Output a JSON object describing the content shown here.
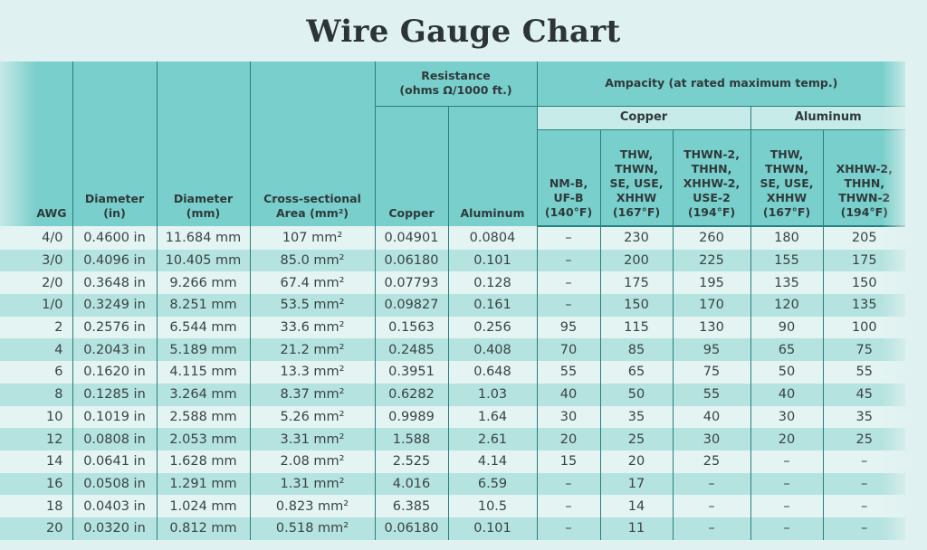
{
  "title": "Wire Gauge Chart",
  "headers": {
    "awg": "AWG",
    "diameter_in": [
      "Diameter",
      "(in)"
    ],
    "diameter_mm": [
      "Diameter",
      "(mm)"
    ],
    "area": [
      "Cross-sectional",
      "Area (mm²)"
    ],
    "resistance_group": [
      "Resistance",
      "(ohms Ω/1000 ft.)"
    ],
    "resistance_copper": "Copper",
    "resistance_aluminum": "Aluminum",
    "ampacity_group": "Ampacity (at rated maximum temp.)",
    "ampacity_copper_group": "Copper",
    "ampacity_aluminum_group": "Aluminum",
    "cu_140": [
      "NM-B,",
      "UF-B",
      "(140°F)"
    ],
    "cu_167": [
      "THW,",
      "THWN,",
      "SE, USE,",
      "XHHW",
      "(167°F)"
    ],
    "cu_194": [
      "THWN-2,",
      "THHN,",
      "XHHW-2,",
      "USE-2",
      "(194°F)"
    ],
    "al_167": [
      "THW,",
      "THWN,",
      "SE, USE,",
      "XHHW",
      "(167°F)"
    ],
    "al_194": [
      "XHHW-2,",
      "THHN,",
      "THWN-2",
      "(194°F)"
    ]
  },
  "chart_data": {
    "type": "table",
    "title": "Wire Gauge Chart",
    "columns": [
      "AWG",
      "Diameter (in)",
      "Diameter (mm)",
      "Cross-sectional Area (mm²)",
      "Resistance Copper (ohms/1000 ft.)",
      "Resistance Aluminum (ohms/1000 ft.)",
      "Ampacity Copper NM-B, UF-B (140°F)",
      "Ampacity Copper THW, THWN, SE, USE, XHHW (167°F)",
      "Ampacity Copper THWN-2, THHN, XHHW-2, USE-2 (194°F)",
      "Ampacity Aluminum THW, THWN, SE, USE, XHHW (167°F)",
      "Ampacity Aluminum XHHW-2, THHN, THWN-2 (194°F)"
    ],
    "rows": [
      [
        "4/0",
        "0.4600 in",
        "11.684 mm",
        "107 mm²",
        "0.04901",
        "0.0804",
        "–",
        "230",
        "260",
        "180",
        "205"
      ],
      [
        "3/0",
        "0.4096 in",
        "10.405 mm",
        "85.0 mm²",
        "0.06180",
        "0.101",
        "–",
        "200",
        "225",
        "155",
        "175"
      ],
      [
        "2/0",
        "0.3648 in",
        "9.266 mm",
        "67.4 mm²",
        "0.07793",
        "0.128",
        "–",
        "175",
        "195",
        "135",
        "150"
      ],
      [
        "1/0",
        "0.3249 in",
        "8.251 mm",
        "53.5 mm²",
        "0.09827",
        "0.161",
        "–",
        "150",
        "170",
        "120",
        "135"
      ],
      [
        "2",
        "0.2576 in",
        "6.544 mm",
        "33.6 mm²",
        "0.1563",
        "0.256",
        "95",
        "115",
        "130",
        "90",
        "100"
      ],
      [
        "4",
        "0.2043 in",
        "5.189 mm",
        "21.2 mm²",
        "0.2485",
        "0.408",
        "70",
        "85",
        "95",
        "65",
        "75"
      ],
      [
        "6",
        "0.1620 in",
        "4.115 mm",
        "13.3 mm²",
        "0.3951",
        "0.648",
        "55",
        "65",
        "75",
        "50",
        "55"
      ],
      [
        "8",
        "0.1285 in",
        "3.264 mm",
        "8.37 mm²",
        "0.6282",
        "1.03",
        "40",
        "50",
        "55",
        "40",
        "45"
      ],
      [
        "10",
        "0.1019 in",
        "2.588 mm",
        "5.26 mm²",
        "0.9989",
        "1.64",
        "30",
        "35",
        "40",
        "30",
        "35"
      ],
      [
        "12",
        "0.0808 in",
        "2.053 mm",
        "3.31 mm²",
        "1.588",
        "2.61",
        "20",
        "25",
        "30",
        "20",
        "25"
      ],
      [
        "14",
        "0.0641 in",
        "1.628 mm",
        "2.08 mm²",
        "2.525",
        "4.14",
        "15",
        "20",
        "25",
        "–",
        "–"
      ],
      [
        "16",
        "0.0508 in",
        "1.291 mm",
        "1.31 mm²",
        "4.016",
        "6.59",
        "–",
        "17",
        "–",
        "–",
        "–"
      ],
      [
        "18",
        "0.0403 in",
        "1.024 mm",
        "0.823 mm²",
        "6.385",
        "10.5",
        "–",
        "14",
        "–",
        "–",
        "–"
      ],
      [
        "20",
        "0.0320 in",
        "0.812 mm",
        "0.518 mm²",
        "0.06180",
        "0.101",
        "–",
        "11",
        "–",
        "–",
        "–"
      ]
    ]
  },
  "colors": {
    "header_bg": "#79cfcb",
    "subheader_bg": "#c7ebe8",
    "row_light": "#e3f4f3",
    "row_dark": "#b5e3e0",
    "grid_line": "#2a7f7c",
    "page_bg": "#dff1f0"
  }
}
